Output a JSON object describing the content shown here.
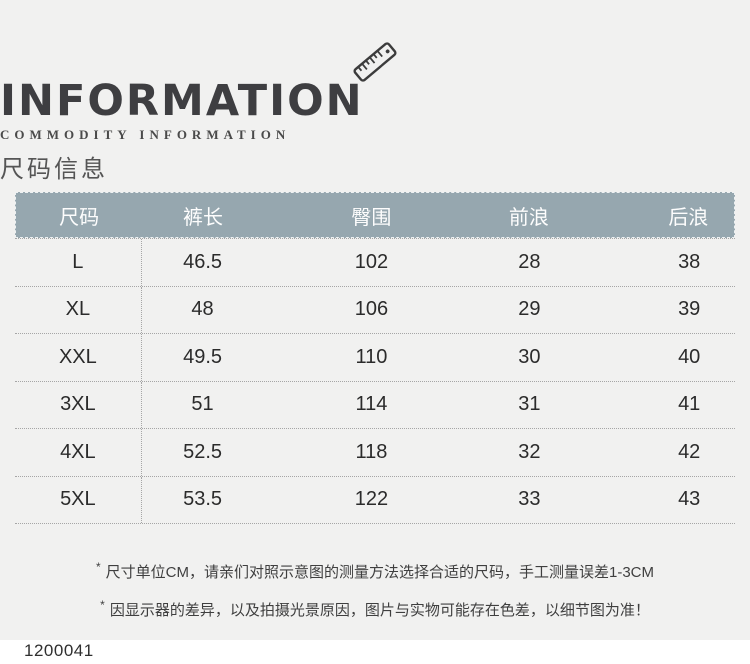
{
  "header": {
    "title": "INFORMATION",
    "subtitle": "COMMODITY INFORMATION",
    "section_title_cn": "尺码信息"
  },
  "table": {
    "header_bg": "#96a7af",
    "columns": [
      "尺码",
      "裤长",
      "臀围",
      "前浪",
      "后浪"
    ],
    "rows": [
      [
        "L",
        "46.5",
        "102",
        "28",
        "38"
      ],
      [
        "XL",
        "48",
        "106",
        "29",
        "39"
      ],
      [
        "XXL",
        "49.5",
        "110",
        "30",
        "40"
      ],
      [
        "3XL",
        "51",
        "114",
        "31",
        "41"
      ],
      [
        "4XL",
        "52.5",
        "118",
        "32",
        "42"
      ],
      [
        "5XL",
        "53.5",
        "122",
        "33",
        "43"
      ]
    ]
  },
  "notes": [
    {
      "marker": "*",
      "text": "尺寸单位CM，请亲们对照示意图的测量方法选择合适的尺码，手工测量误差1-3CM"
    },
    {
      "marker": "*",
      "text": "因显示器的差异，以及拍摄光景原因，图片与实物可能存在色差，以细节图为准！"
    }
  ],
  "footer": {
    "product_code": "1200041"
  }
}
